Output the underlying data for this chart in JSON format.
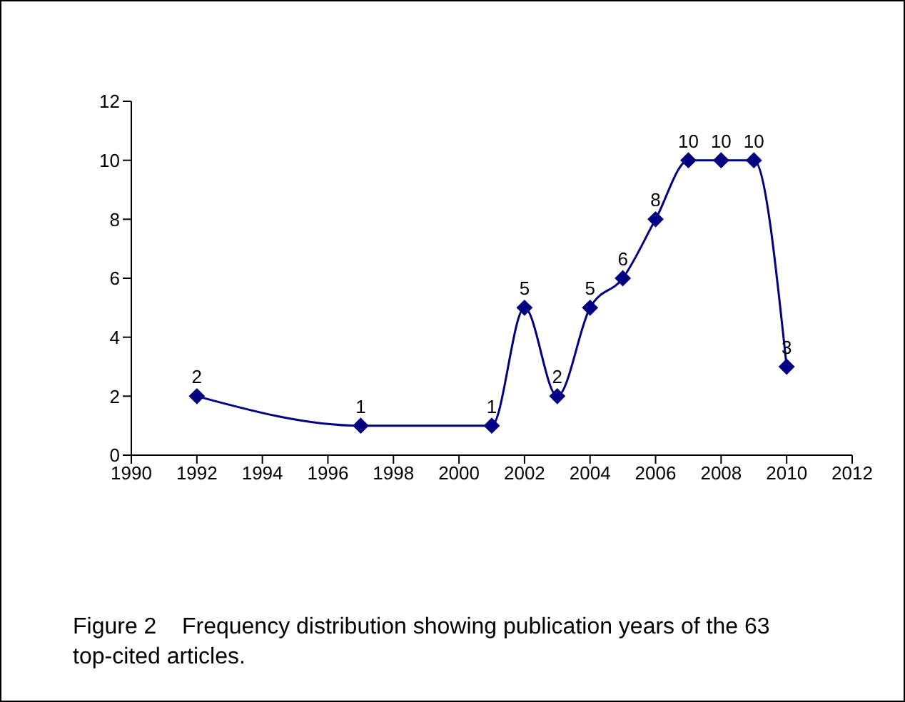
{
  "chart_data": {
    "type": "line",
    "x": [
      1992,
      1997,
      2001,
      2002,
      2003,
      2004,
      2005,
      2006,
      2007,
      2008,
      2009,
      2010
    ],
    "series": [
      {
        "color": "#000080",
        "values": [
          2,
          1,
          1,
          5,
          2,
          5,
          6,
          8,
          10,
          10,
          10,
          3
        ]
      }
    ],
    "xlim": [
      1990,
      2012
    ],
    "xticks": [
      1990,
      1992,
      1994,
      1996,
      1998,
      2000,
      2002,
      2004,
      2006,
      2008,
      2010,
      2012
    ],
    "ylim": [
      0,
      12
    ],
    "yticks": [
      0,
      2,
      4,
      6,
      8,
      10,
      12
    ],
    "data_labels": true,
    "marker": "diamond",
    "annotations": [
      "Figure 2    Frequency distribution showing publication years of the 63 top-cited articles."
    ]
  }
}
